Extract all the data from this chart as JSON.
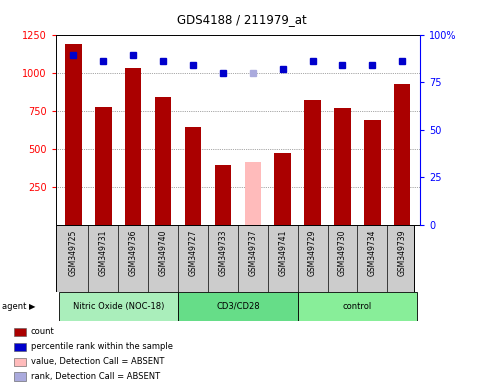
{
  "title": "GDS4188 / 211979_at",
  "samples": [
    "GSM349725",
    "GSM349731",
    "GSM349736",
    "GSM349740",
    "GSM349727",
    "GSM349733",
    "GSM349737",
    "GSM349741",
    "GSM349729",
    "GSM349730",
    "GSM349734",
    "GSM349739"
  ],
  "bar_values": [
    1185,
    775,
    1030,
    840,
    645,
    390,
    415,
    470,
    820,
    765,
    690,
    925
  ],
  "bar_colors": [
    "#aa0000",
    "#aa0000",
    "#aa0000",
    "#aa0000",
    "#aa0000",
    "#aa0000",
    "#ffbbbb",
    "#aa0000",
    "#aa0000",
    "#aa0000",
    "#aa0000",
    "#aa0000"
  ],
  "dot_values_pct": [
    89,
    86,
    89,
    86,
    84,
    80,
    80,
    82,
    86,
    84,
    84,
    86
  ],
  "dot_colors": [
    "#0000cc",
    "#0000cc",
    "#0000cc",
    "#0000cc",
    "#0000cc",
    "#0000cc",
    "#aaaadd",
    "#0000cc",
    "#0000cc",
    "#0000cc",
    "#0000cc",
    "#0000cc"
  ],
  "ylim_left": [
    0,
    1250
  ],
  "ylim_right": [
    0,
    100
  ],
  "yticks_left": [
    250,
    500,
    750,
    1000,
    1250
  ],
  "yticks_right_labels": [
    "0",
    "25",
    "50",
    "75",
    "100%"
  ],
  "yticks_right_vals": [
    0,
    25,
    50,
    75,
    100
  ],
  "groups": [
    {
      "label": "Nitric Oxide (NOC-18)",
      "start": 0,
      "end": 4,
      "color": "#aaeebb"
    },
    {
      "label": "CD3/CD28",
      "start": 4,
      "end": 8,
      "color": "#66dd88"
    },
    {
      "label": "control",
      "start": 8,
      "end": 12,
      "color": "#88ee99"
    }
  ],
  "legend_items": [
    {
      "color": "#aa0000",
      "label": "count"
    },
    {
      "color": "#0000cc",
      "label": "percentile rank within the sample"
    },
    {
      "color": "#ffbbbb",
      "label": "value, Detection Call = ABSENT"
    },
    {
      "color": "#aaaadd",
      "label": "rank, Detection Call = ABSENT"
    }
  ],
  "bg_plot": "#ffffff",
  "bg_labels": "#cccccc",
  "grid_color": "#555555",
  "bar_width": 0.55
}
